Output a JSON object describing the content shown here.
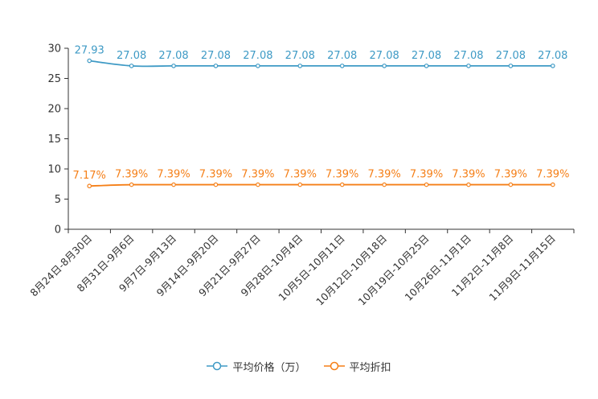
{
  "chart_data": {
    "type": "line",
    "categories": [
      "8月24日-8月30日",
      "8月31日-9月6日",
      "9月7日-9月13日",
      "9月14日-9月20日",
      "9月21日-9月27日",
      "9月28日-10月4日",
      "10月5日-10月11日",
      "10月12日-10月18日",
      "10月19日-10月25日",
      "10月26日-11月1日",
      "11月2日-11月8日",
      "11月9日-11月15日"
    ],
    "series": [
      {
        "name": "平均价格（万）",
        "color": "#3e9ac5",
        "values": [
          27.93,
          27.08,
          27.08,
          27.08,
          27.08,
          27.08,
          27.08,
          27.08,
          27.08,
          27.08,
          27.08,
          27.08
        ],
        "labels": [
          "27.93",
          "27.08",
          "27.08",
          "27.08",
          "27.08",
          "27.08",
          "27.08",
          "27.08",
          "27.08",
          "27.08",
          "27.08",
          "27.08"
        ]
      },
      {
        "name": "平均折扣",
        "color": "#f57f17",
        "values": [
          7.17,
          7.39,
          7.39,
          7.39,
          7.39,
          7.39,
          7.39,
          7.39,
          7.39,
          7.39,
          7.39,
          7.39
        ],
        "labels": [
          "7.17%",
          "7.39%",
          "7.39%",
          "7.39%",
          "7.39%",
          "7.39%",
          "7.39%",
          "7.39%",
          "7.39%",
          "7.39%",
          "7.39%",
          "7.39%"
        ]
      }
    ],
    "ylim": [
      0,
      30
    ],
    "yticks": [
      "0",
      "5",
      "10",
      "15",
      "20",
      "25",
      "30"
    ],
    "title": "",
    "xlabel": "",
    "ylabel": "",
    "legend_position": "bottom-center"
  }
}
